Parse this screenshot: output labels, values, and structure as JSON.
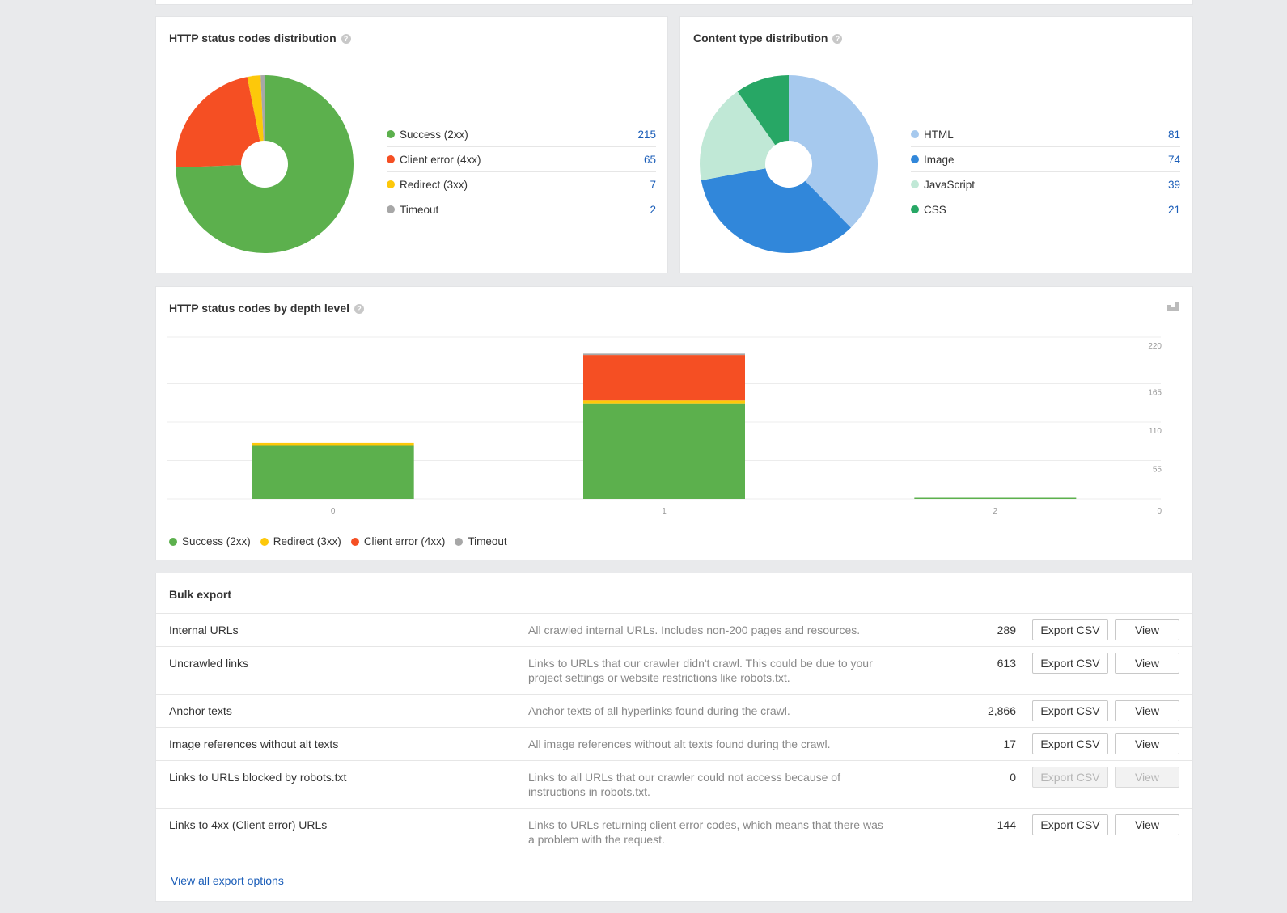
{
  "status_card": {
    "title": "HTTP status codes distribution",
    "help": "?",
    "legend": [
      {
        "label": "Success (2xx)",
        "value": "215",
        "color": "#5cb04d"
      },
      {
        "label": "Client error (4xx)",
        "value": "65",
        "color": "#f54f23"
      },
      {
        "label": "Redirect (3xx)",
        "value": "7",
        "color": "#fdc80a"
      },
      {
        "label": "Timeout",
        "value": "2",
        "color": "#a7a7a7"
      }
    ]
  },
  "content_card": {
    "title": "Content type distribution",
    "help": "?",
    "legend": [
      {
        "label": "HTML",
        "value": "81",
        "color": "#a6c9ee"
      },
      {
        "label": "Image",
        "value": "74",
        "color": "#3187da"
      },
      {
        "label": "JavaScript",
        "value": "39",
        "color": "#c0e8d6"
      },
      {
        "label": "CSS",
        "value": "21",
        "color": "#27a765"
      }
    ]
  },
  "depth_card": {
    "title": "HTTP status codes by depth level",
    "help": "?",
    "icon": "bar-chart-icon"
  },
  "chart_data": [
    {
      "type": "pie",
      "title": "HTTP status codes distribution",
      "categories": [
        "Success (2xx)",
        "Client error (4xx)",
        "Redirect (3xx)",
        "Timeout"
      ],
      "values": [
        215,
        65,
        7,
        2
      ],
      "colors": [
        "#5cb04d",
        "#f54f23",
        "#fdc80a",
        "#a7a7a7"
      ],
      "donut": true
    },
    {
      "type": "pie",
      "title": "Content type distribution",
      "categories": [
        "HTML",
        "Image",
        "JavaScript",
        "CSS"
      ],
      "values": [
        81,
        74,
        39,
        21
      ],
      "colors": [
        "#a6c9ee",
        "#3187da",
        "#c0e8d6",
        "#27a765"
      ],
      "donut": true
    },
    {
      "type": "bar",
      "stacked": true,
      "title": "HTTP status codes by depth level",
      "categories": [
        "0",
        "1",
        "2"
      ],
      "series": [
        {
          "name": "Success (2xx)",
          "color": "#5cb04d",
          "values": [
            77,
            137,
            1
          ]
        },
        {
          "name": "Redirect (3xx)",
          "color": "#fdc80a",
          "values": [
            3,
            4,
            0
          ]
        },
        {
          "name": "Client error (4xx)",
          "color": "#f54f23",
          "values": [
            0,
            65,
            0
          ]
        },
        {
          "name": "Timeout",
          "color": "#a7a7a7",
          "values": [
            0,
            2,
            0
          ]
        }
      ],
      "ylim": [
        0,
        220
      ],
      "yticks": [
        "0",
        "55",
        "110",
        "165",
        "220"
      ],
      "grid": true,
      "legend_position": "bottom-left"
    }
  ],
  "bulk_export": {
    "title": "Bulk export",
    "export_label": "Export CSV",
    "view_label": "View",
    "rows": [
      {
        "name": "Internal URLs",
        "desc": "All crawled internal URLs. Includes non-200 pages and resources.",
        "count": "289",
        "disabled": false
      },
      {
        "name": "Uncrawled links",
        "desc": "Links to URLs that our crawler didn't crawl. This could be due to your project settings or website restrictions like robots.txt.",
        "count": "613",
        "disabled": false
      },
      {
        "name": "Anchor texts",
        "desc": "Anchor texts of all hyperlinks found during the crawl.",
        "count": "2,866",
        "disabled": false
      },
      {
        "name": "Image references without alt texts",
        "desc": "All image references without alt texts found during the crawl.",
        "count": "17",
        "disabled": false
      },
      {
        "name": "Links to URLs blocked by robots.txt",
        "desc": "Links to all URLs that our crawler could not access because of instructions in robots.txt.",
        "count": "0",
        "disabled": true
      },
      {
        "name": "Links to 4xx (Client error) URLs",
        "desc": "Links to URLs returning client error codes, which means that there was a problem with the request.",
        "count": "144",
        "disabled": false
      }
    ],
    "view_all": "View all export options"
  }
}
